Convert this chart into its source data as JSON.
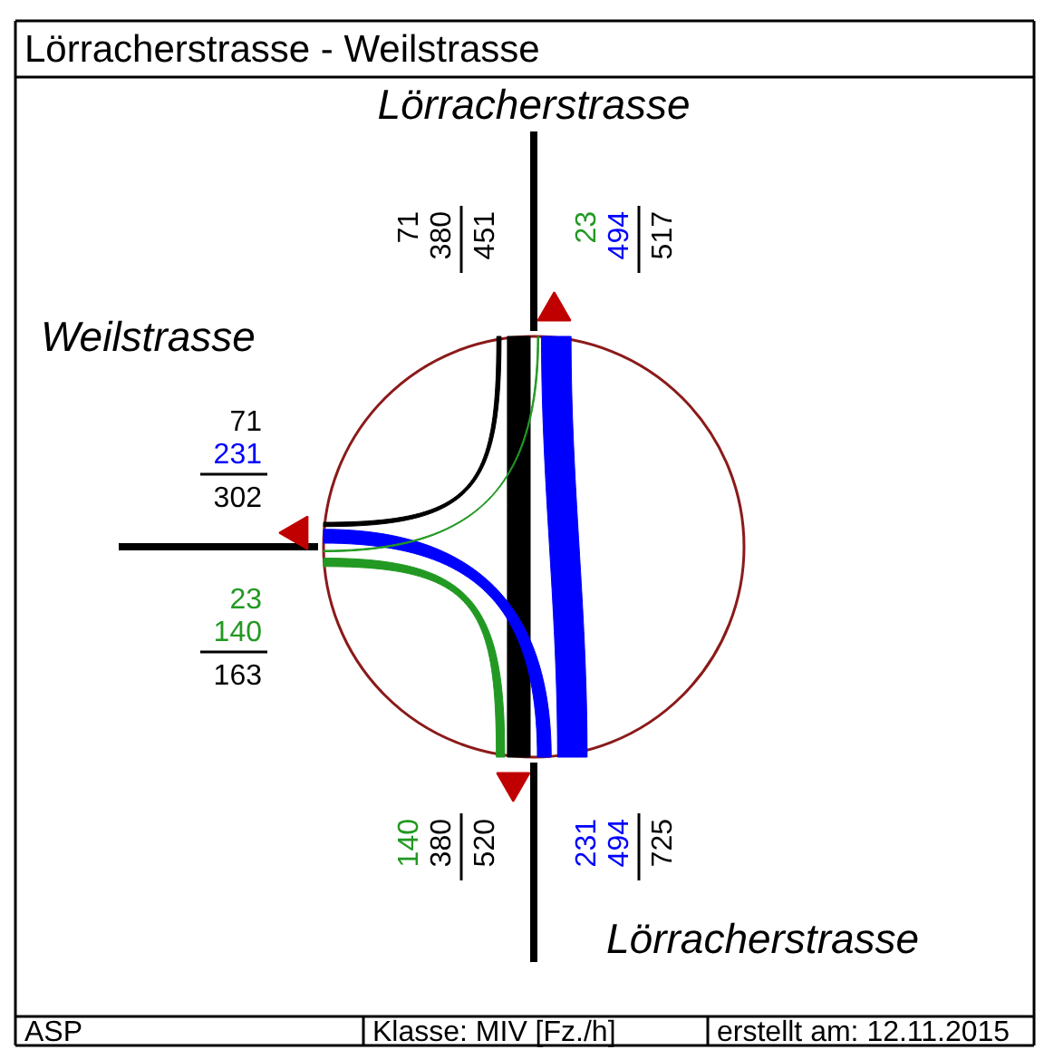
{
  "chart_data": {
    "type": "other",
    "title": "Lörracherstrasse - Weilstrasse",
    "categories": [
      "Weilstrasse",
      "Lörracherstrasse",
      "Lörracherstrasse"
    ],
    "series": [
      {
        "color": "#229922",
        "values": [
          null,
          23,
          140
        ]
      },
      {
        "color": "#000000",
        "values": [
          71,
          null,
          380
        ]
      },
      {
        "color": "#0000ff",
        "values": [
          231,
          494,
          null
        ]
      },
      {
        "values": [
          null,
          71,
          231
        ]
      },
      {
        "values": [
          23,
          null,
          494
        ]
      },
      {
        "values": [
          140,
          380,
          null
        ]
      }
    ],
    "totals": [
      [
        "163",
        "302"
      ],
      [
        "451",
        "517"
      ],
      [
        "725",
        "520"
      ]
    ],
    "data_labels": true,
    "annotations": [
      "ASP",
      "Klasse: MIV [Fz./h]",
      "erstellt am: 12.11.2015"
    ]
  }
}
